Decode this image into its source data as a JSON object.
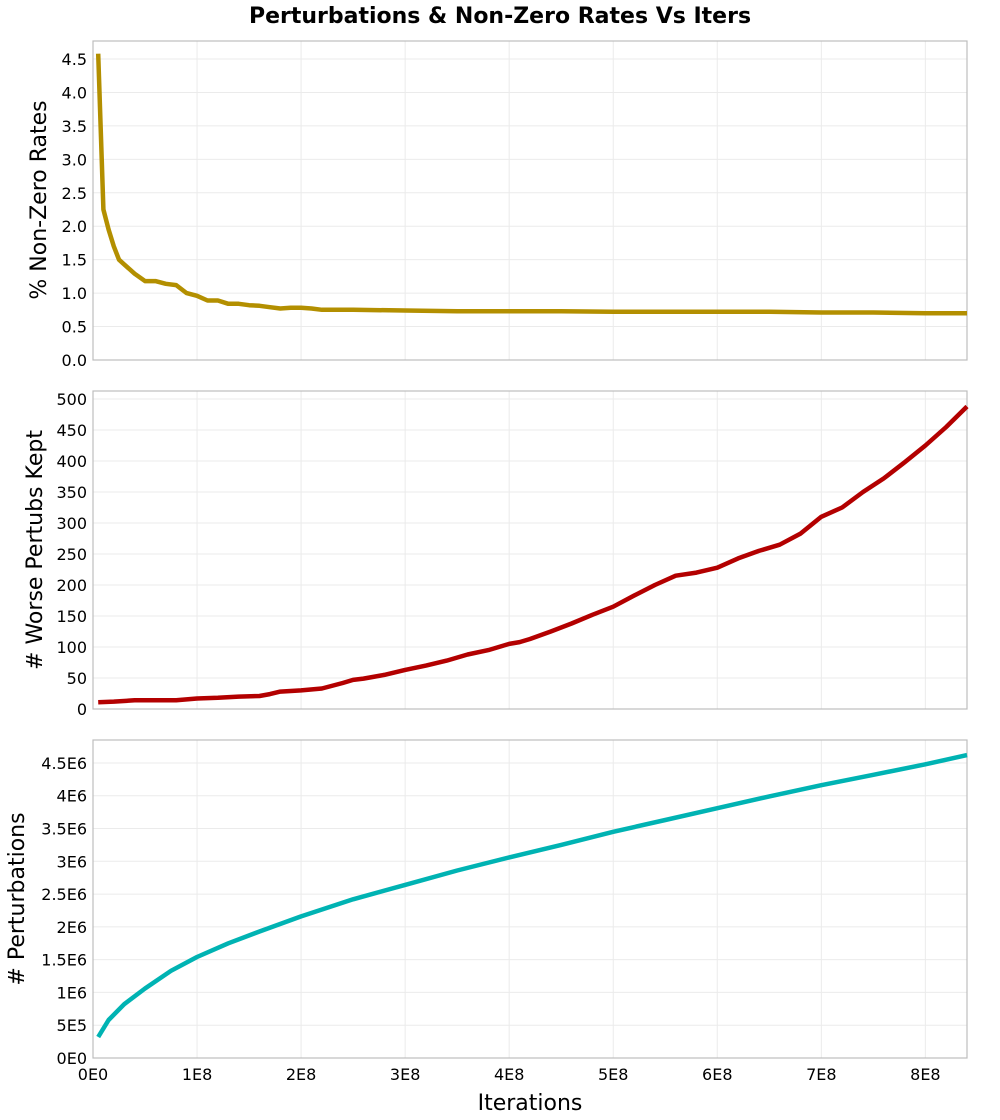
{
  "chart_data": {
    "title": "Perturbations & Non-Zero Rates Vs Iters",
    "type": "line",
    "layout": "3 vertically stacked subplots sharing x axis",
    "xlabel": "Iterations",
    "xlim": [
      0,
      840000000
    ],
    "x_ticks": [
      0,
      100000000,
      200000000,
      300000000,
      400000000,
      500000000,
      600000000,
      700000000,
      800000000
    ],
    "x_tick_labels": [
      "0E0",
      "1E8",
      "2E8",
      "3E8",
      "4E8",
      "5E8",
      "6E8",
      "7E8",
      "8E8"
    ],
    "grid": true,
    "legend": "none",
    "subplots": [
      {
        "name": "non-zero-rates",
        "ylabel": "% Non-Zero Rates",
        "color": "#b38f00",
        "ylim": [
          0,
          4.77
        ],
        "y_ticks": [
          0,
          0.5,
          1.0,
          1.5,
          2.0,
          2.5,
          3.0,
          3.5,
          4.0,
          4.5
        ],
        "y_tick_labels": [
          "0.0",
          "0.5",
          "1.0",
          "1.5",
          "2.0",
          "2.5",
          "3.0",
          "3.5",
          "4.0",
          "4.5"
        ],
        "x": [
          5000000,
          10000000,
          15000000,
          20000000,
          25000000,
          30000000,
          40000000,
          50000000,
          60000000,
          70000000,
          80000000,
          90000000,
          100000000,
          110000000,
          120000000,
          130000000,
          140000000,
          150000000,
          160000000,
          170000000,
          180000000,
          190000000,
          200000000,
          210000000,
          220000000,
          250000000,
          300000000,
          350000000,
          400000000,
          450000000,
          500000000,
          550000000,
          600000000,
          650000000,
          700000000,
          750000000,
          800000000,
          840000000
        ],
        "values": [
          4.58,
          2.25,
          1.95,
          1.7,
          1.5,
          1.43,
          1.29,
          1.18,
          1.18,
          1.14,
          1.12,
          1.0,
          0.96,
          0.89,
          0.89,
          0.84,
          0.84,
          0.82,
          0.81,
          0.79,
          0.77,
          0.78,
          0.78,
          0.77,
          0.75,
          0.75,
          0.74,
          0.73,
          0.73,
          0.73,
          0.72,
          0.72,
          0.72,
          0.72,
          0.71,
          0.71,
          0.7,
          0.7
        ]
      },
      {
        "name": "worse-perturbs-kept",
        "ylabel": "# Worse Pertubs Kept",
        "color": "#b30000",
        "ylim": [
          0,
          513
        ],
        "y_ticks": [
          0,
          50,
          100,
          150,
          200,
          250,
          300,
          350,
          400,
          450,
          500
        ],
        "y_tick_labels": [
          "0",
          "50",
          "100",
          "150",
          "200",
          "250",
          "300",
          "350",
          "400",
          "450",
          "500"
        ],
        "x": [
          5000000,
          20000000,
          40000000,
          60000000,
          80000000,
          100000000,
          120000000,
          140000000,
          160000000,
          170000000,
          180000000,
          190000000,
          200000000,
          220000000,
          240000000,
          250000000,
          260000000,
          280000000,
          300000000,
          320000000,
          340000000,
          360000000,
          380000000,
          400000000,
          410000000,
          420000000,
          440000000,
          460000000,
          480000000,
          500000000,
          520000000,
          540000000,
          560000000,
          580000000,
          600000000,
          620000000,
          640000000,
          660000000,
          680000000,
          700000000,
          720000000,
          740000000,
          760000000,
          780000000,
          800000000,
          820000000,
          840000000
        ],
        "values": [
          11,
          12,
          14,
          14,
          14,
          17,
          18,
          20,
          21,
          24,
          28,
          29,
          30,
          33,
          42,
          47,
          49,
          55,
          63,
          70,
          78,
          88,
          95,
          105,
          108,
          113,
          125,
          138,
          152,
          165,
          183,
          200,
          215,
          220,
          228,
          243,
          255,
          265,
          283,
          310,
          325,
          350,
          372,
          398,
          425,
          455,
          488
        ]
      },
      {
        "name": "perturbations",
        "ylabel": "# Perturbations",
        "color": "#00b3b3",
        "ylim": [
          0,
          4850000
        ],
        "y_ticks": [
          0,
          500000,
          1000000,
          1500000,
          2000000,
          2500000,
          3000000,
          3500000,
          4000000,
          4500000
        ],
        "y_tick_labels": [
          "0E0",
          "5E5",
          "1E6",
          "1.5E6",
          "2E6",
          "2.5E6",
          "3E6",
          "3.5E6",
          "4E6",
          "4.5E6"
        ],
        "x": [
          5000000,
          15000000,
          30000000,
          50000000,
          75000000,
          100000000,
          130000000,
          160000000,
          200000000,
          250000000,
          300000000,
          350000000,
          400000000,
          450000000,
          500000000,
          550000000,
          600000000,
          650000000,
          700000000,
          750000000,
          800000000,
          840000000
        ],
        "values": [
          320000,
          580000,
          820000,
          1060000,
          1330000,
          1540000,
          1750000,
          1930000,
          2160000,
          2420000,
          2640000,
          2860000,
          3060000,
          3250000,
          3450000,
          3630000,
          3810000,
          3990000,
          4160000,
          4320000,
          4480000,
          4620000
        ]
      }
    ]
  },
  "labels": {
    "title": "Perturbations & Non-Zero Rates Vs Iters",
    "xlabel": "Iterations",
    "ylabel_1": "% Non-Zero Rates",
    "ylabel_2": "# Worse Pertubs Kept",
    "ylabel_3": "# Perturbations"
  }
}
